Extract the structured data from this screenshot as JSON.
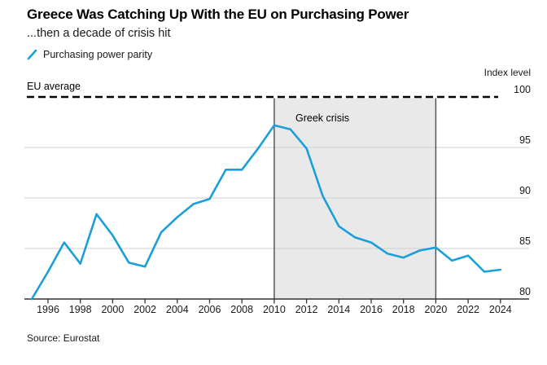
{
  "chart_data": {
    "type": "line",
    "title": "Greece Was Catching Up With the EU on Purchasing Power",
    "subtitle": "...then a decade of crisis hit",
    "ylabel": "Index level",
    "xlabel": "",
    "x": [
      1995,
      1996,
      1997,
      1998,
      1999,
      2000,
      2001,
      2002,
      2003,
      2004,
      2005,
      2006,
      2007,
      2008,
      2009,
      2010,
      2011,
      2012,
      2013,
      2014,
      2015,
      2016,
      2017,
      2018,
      2019,
      2020,
      2021,
      2022,
      2023,
      2024
    ],
    "series": [
      {
        "name": "Purchasing power parity",
        "color": "#1a9fdb",
        "values": [
          80.0,
          82.7,
          85.6,
          83.5,
          88.4,
          86.3,
          83.6,
          83.2,
          86.6,
          88.1,
          89.4,
          89.9,
          92.8,
          92.8,
          94.9,
          97.2,
          96.8,
          94.9,
          90.2,
          87.2,
          86.1,
          85.6,
          84.5,
          84.1,
          84.8,
          85.1,
          83.8,
          84.3,
          82.7,
          82.9
        ]
      }
    ],
    "reference_line": {
      "label": "EU average",
      "value": 100,
      "style": "dashed",
      "color": "#000000"
    },
    "shaded_region": {
      "label": "Greek crisis",
      "x_start": 2010,
      "x_end": 2020,
      "fill": "#e9e9e9",
      "border_color": "#4d4d4d"
    },
    "y_ticks": [
      80,
      85,
      90,
      95,
      100
    ],
    "x_ticks": [
      1996,
      1998,
      2000,
      2002,
      2004,
      2006,
      2008,
      2010,
      2012,
      2014,
      2016,
      2018,
      2020,
      2022,
      2024
    ],
    "ylim": [
      80,
      100
    ],
    "xlim": [
      1995,
      2024
    ],
    "grid": "horizontal",
    "legend_position": "top-left"
  },
  "legend": {
    "items": [
      {
        "label": "Purchasing power parity",
        "marker": "slash-icon",
        "color": "#1a9fdb"
      }
    ]
  },
  "footer": {
    "source": "Source: Eurostat"
  }
}
